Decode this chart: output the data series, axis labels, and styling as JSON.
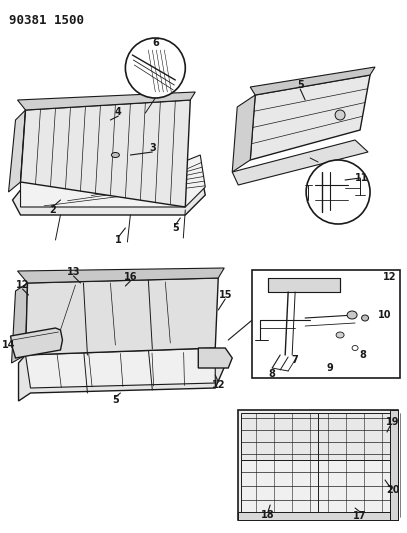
{
  "title": "90381 1500",
  "bg_color": "#ffffff",
  "line_color": "#1a1a1a",
  "title_fontsize": 9,
  "label_fontsize": 6.5,
  "fig_width": 4.07,
  "fig_height": 5.33,
  "dpi": 100
}
